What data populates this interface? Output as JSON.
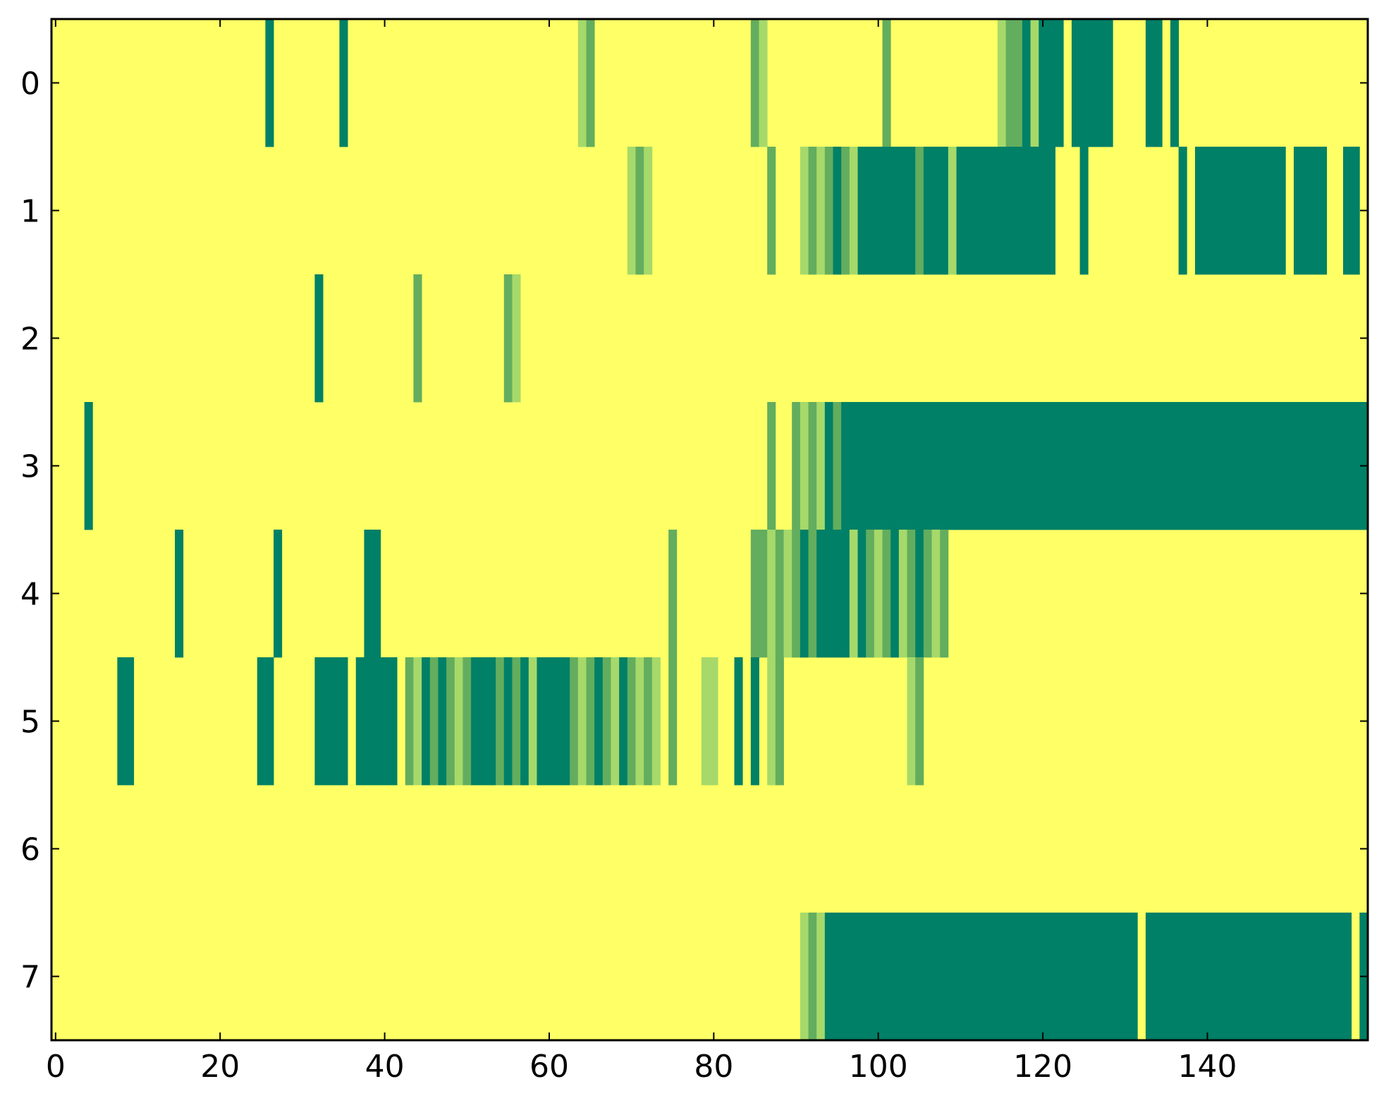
{
  "chart_data": {
    "type": "heatmap",
    "title": "",
    "xlabel": "",
    "ylabel": "",
    "xlim": [
      -0.5,
      159.5
    ],
    "ylim": [
      -0.5,
      7.5
    ],
    "x_ticks": [
      "0",
      "20",
      "40",
      "60",
      "80",
      "100",
      "120",
      "140"
    ],
    "y_ticks": [
      "0",
      "1",
      "2",
      "3",
      "4",
      "5",
      "6",
      "7"
    ],
    "n_columns": 160,
    "n_rows": 8,
    "colormap": [
      "#FFFF66",
      "#A6D96A",
      "#63AD5E",
      "#008066"
    ],
    "value_range": [
      0,
      3
    ],
    "background_value": 0,
    "rows": [
      {
        "row": 0,
        "runs": [
          [
            26,
            26,
            3
          ],
          [
            35,
            35,
            3
          ],
          [
            64,
            64,
            1
          ],
          [
            65,
            65,
            2
          ],
          [
            85,
            85,
            2
          ],
          [
            86,
            86,
            1
          ],
          [
            101,
            101,
            2
          ],
          [
            115,
            115,
            1
          ],
          [
            116,
            117,
            2
          ],
          [
            118,
            118,
            3
          ],
          [
            119,
            119,
            1
          ],
          [
            120,
            122,
            3
          ],
          [
            124,
            128,
            3
          ],
          [
            133,
            134,
            3
          ],
          [
            136,
            136,
            3
          ]
        ]
      },
      {
        "row": 1,
        "runs": [
          [
            70,
            70,
            1
          ],
          [
            71,
            71,
            2
          ],
          [
            72,
            72,
            1
          ],
          [
            87,
            87,
            2
          ],
          [
            91,
            91,
            1
          ],
          [
            92,
            92,
            2
          ],
          [
            93,
            93,
            1
          ],
          [
            94,
            94,
            2
          ],
          [
            95,
            95,
            3
          ],
          [
            96,
            96,
            2
          ],
          [
            97,
            97,
            1
          ],
          [
            98,
            104,
            3
          ],
          [
            105,
            105,
            2
          ],
          [
            106,
            108,
            3
          ],
          [
            109,
            109,
            1
          ],
          [
            110,
            121,
            3
          ],
          [
            125,
            125,
            3
          ],
          [
            137,
            137,
            3
          ],
          [
            139,
            149,
            3
          ],
          [
            151,
            154,
            3
          ],
          [
            157,
            158,
            3
          ]
        ]
      },
      {
        "row": 2,
        "runs": [
          [
            32,
            32,
            3
          ],
          [
            44,
            44,
            2
          ],
          [
            55,
            55,
            2
          ],
          [
            56,
            56,
            1
          ]
        ]
      },
      {
        "row": 3,
        "runs": [
          [
            4,
            4,
            3
          ],
          [
            87,
            87,
            2
          ],
          [
            90,
            90,
            2
          ],
          [
            91,
            91,
            1
          ],
          [
            92,
            92,
            2
          ],
          [
            93,
            93,
            1
          ],
          [
            94,
            94,
            3
          ],
          [
            95,
            95,
            2
          ],
          [
            96,
            159,
            3
          ]
        ]
      },
      {
        "row": 4,
        "runs": [
          [
            15,
            15,
            3
          ],
          [
            27,
            27,
            3
          ],
          [
            38,
            39,
            3
          ],
          [
            75,
            75,
            2
          ],
          [
            85,
            86,
            2
          ],
          [
            87,
            87,
            1
          ],
          [
            88,
            88,
            2
          ],
          [
            89,
            89,
            1
          ],
          [
            90,
            90,
            2
          ],
          [
            91,
            91,
            3
          ],
          [
            92,
            92,
            2
          ],
          [
            93,
            93,
            3
          ],
          [
            94,
            96,
            3
          ],
          [
            97,
            97,
            1
          ],
          [
            98,
            98,
            3
          ],
          [
            99,
            99,
            2
          ],
          [
            100,
            100,
            1
          ],
          [
            101,
            101,
            2
          ],
          [
            102,
            102,
            3
          ],
          [
            103,
            103,
            1
          ],
          [
            104,
            104,
            2
          ],
          [
            105,
            105,
            3
          ],
          [
            106,
            106,
            2
          ],
          [
            107,
            107,
            1
          ],
          [
            108,
            108,
            2
          ]
        ]
      },
      {
        "row": 5,
        "runs": [
          [
            8,
            9,
            3
          ],
          [
            25,
            26,
            3
          ],
          [
            32,
            35,
            3
          ],
          [
            37,
            41,
            3
          ],
          [
            43,
            43,
            2
          ],
          [
            44,
            44,
            1
          ],
          [
            45,
            45,
            3
          ],
          [
            46,
            46,
            2
          ],
          [
            47,
            47,
            3
          ],
          [
            48,
            48,
            2
          ],
          [
            49,
            49,
            1
          ],
          [
            50,
            50,
            2
          ],
          [
            51,
            53,
            3
          ],
          [
            54,
            54,
            2
          ],
          [
            55,
            55,
            3
          ],
          [
            56,
            56,
            2
          ],
          [
            57,
            57,
            3
          ],
          [
            58,
            58,
            1
          ],
          [
            59,
            62,
            3
          ],
          [
            63,
            63,
            2
          ],
          [
            64,
            64,
            1
          ],
          [
            65,
            65,
            2
          ],
          [
            66,
            66,
            3
          ],
          [
            67,
            67,
            2
          ],
          [
            68,
            68,
            1
          ],
          [
            69,
            69,
            3
          ],
          [
            70,
            70,
            2
          ],
          [
            71,
            71,
            1
          ],
          [
            72,
            72,
            2
          ],
          [
            73,
            73,
            1
          ],
          [
            75,
            75,
            2
          ],
          [
            79,
            80,
            1
          ],
          [
            83,
            83,
            3
          ],
          [
            85,
            85,
            3
          ],
          [
            87,
            87,
            1
          ],
          [
            88,
            88,
            2
          ],
          [
            104,
            104,
            1
          ],
          [
            105,
            105,
            2
          ]
        ]
      },
      {
        "row": 6,
        "runs": []
      },
      {
        "row": 7,
        "runs": [
          [
            91,
            91,
            1
          ],
          [
            92,
            92,
            2
          ],
          [
            93,
            93,
            1
          ],
          [
            94,
            131,
            3
          ],
          [
            133,
            157,
            3
          ],
          [
            159,
            159,
            3
          ]
        ]
      }
    ]
  }
}
